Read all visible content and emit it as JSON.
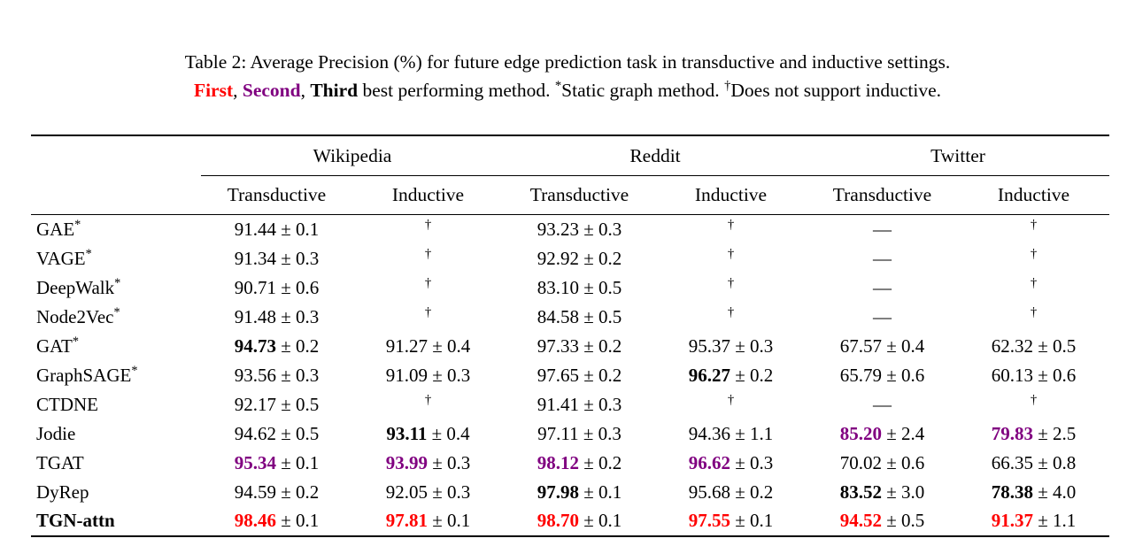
{
  "colors": {
    "first": "#ff0000",
    "second": "#800080",
    "third": "#000000",
    "text": "#000000",
    "background": "#ffffff",
    "rule": "#000000"
  },
  "caption": {
    "line1": "Table 2: Average Precision (%) for future edge prediction task in transductive and inductive settings.",
    "first_label": "First",
    "sep1": ", ",
    "second_label": "Second",
    "sep2": ", ",
    "third_label": "Third",
    "after_third": " best performing method. ",
    "star_sup": "*",
    "star_note": "Static graph method. ",
    "dagger_sup": "†",
    "dagger_note": "Does not support inductive."
  },
  "table": {
    "header": {
      "groups": [
        {
          "label": "Wikipedia"
        },
        {
          "label": "Reddit"
        },
        {
          "label": "Twitter"
        }
      ],
      "subcols": [
        "Transductive",
        "Inductive",
        "Transductive",
        "Inductive",
        "Transductive",
        "Inductive"
      ]
    },
    "rows": [
      {
        "label": {
          "text": "GAE",
          "sup": "*",
          "bold": false
        },
        "cells": [
          {
            "v": "91.44",
            "pm": "± 0.1",
            "rank": "plain"
          },
          {
            "sym": "†"
          },
          {
            "v": "93.23",
            "pm": "± 0.3",
            "rank": "plain"
          },
          {
            "sym": "†"
          },
          {
            "sym": "—"
          },
          {
            "sym": "†"
          }
        ]
      },
      {
        "label": {
          "text": "VAGE",
          "sup": "*",
          "bold": false
        },
        "cells": [
          {
            "v": "91.34",
            "pm": "± 0.3",
            "rank": "plain"
          },
          {
            "sym": "†"
          },
          {
            "v": "92.92",
            "pm": "± 0.2",
            "rank": "plain"
          },
          {
            "sym": "†"
          },
          {
            "sym": "—"
          },
          {
            "sym": "†"
          }
        ]
      },
      {
        "label": {
          "text": "DeepWalk",
          "sup": "*",
          "bold": false
        },
        "cells": [
          {
            "v": "90.71",
            "pm": "± 0.6",
            "rank": "plain"
          },
          {
            "sym": "†"
          },
          {
            "v": "83.10",
            "pm": "± 0.5",
            "rank": "plain"
          },
          {
            "sym": "†"
          },
          {
            "sym": "—"
          },
          {
            "sym": "†"
          }
        ]
      },
      {
        "label": {
          "text": "Node2Vec",
          "sup": "*",
          "bold": false
        },
        "cells": [
          {
            "v": "91.48",
            "pm": "± 0.3",
            "rank": "plain"
          },
          {
            "sym": "†"
          },
          {
            "v": "84.58",
            "pm": "± 0.5",
            "rank": "plain"
          },
          {
            "sym": "†"
          },
          {
            "sym": "—"
          },
          {
            "sym": "†"
          }
        ]
      },
      {
        "label": {
          "text": "GAT",
          "sup": "*",
          "bold": false
        },
        "cells": [
          {
            "v": "94.73",
            "pm": "± 0.2",
            "rank": "third"
          },
          {
            "v": "91.27",
            "pm": "± 0.4",
            "rank": "plain"
          },
          {
            "v": "97.33",
            "pm": "± 0.2",
            "rank": "plain"
          },
          {
            "v": "95.37",
            "pm": "± 0.3",
            "rank": "plain"
          },
          {
            "v": "67.57",
            "pm": "± 0.4",
            "rank": "plain"
          },
          {
            "v": "62.32",
            "pm": "± 0.5",
            "rank": "plain"
          }
        ]
      },
      {
        "label": {
          "text": "GraphSAGE",
          "sup": "*",
          "bold": false
        },
        "cells": [
          {
            "v": "93.56",
            "pm": "± 0.3",
            "rank": "plain"
          },
          {
            "v": "91.09",
            "pm": "± 0.3",
            "rank": "plain"
          },
          {
            "v": "97.65",
            "pm": "± 0.2",
            "rank": "plain"
          },
          {
            "v": "96.27",
            "pm": "± 0.2",
            "rank": "third"
          },
          {
            "v": "65.79",
            "pm": "± 0.6",
            "rank": "plain"
          },
          {
            "v": "60.13",
            "pm": "± 0.6",
            "rank": "plain"
          }
        ]
      },
      {
        "label": {
          "text": "CTDNE",
          "sup": "",
          "bold": false
        },
        "cells": [
          {
            "v": "92.17",
            "pm": "± 0.5",
            "rank": "plain"
          },
          {
            "sym": "†"
          },
          {
            "v": "91.41",
            "pm": "± 0.3",
            "rank": "plain"
          },
          {
            "sym": "†"
          },
          {
            "sym": "—"
          },
          {
            "sym": "†"
          }
        ]
      },
      {
        "label": {
          "text": "Jodie",
          "sup": "",
          "bold": false
        },
        "cells": [
          {
            "v": "94.62",
            "pm": "± 0.5",
            "rank": "plain"
          },
          {
            "v": "93.11",
            "pm": "± 0.4",
            "rank": "third"
          },
          {
            "v": "97.11",
            "pm": "± 0.3",
            "rank": "plain"
          },
          {
            "v": "94.36",
            "pm": "± 1.1",
            "rank": "plain"
          },
          {
            "v": "85.20",
            "pm": "± 2.4",
            "rank": "second"
          },
          {
            "v": "79.83",
            "pm": "± 2.5",
            "rank": "second"
          }
        ]
      },
      {
        "label": {
          "text": "TGAT",
          "sup": "",
          "bold": false
        },
        "cells": [
          {
            "v": "95.34",
            "pm": "± 0.1",
            "rank": "second"
          },
          {
            "v": "93.99",
            "pm": "± 0.3",
            "rank": "second"
          },
          {
            "v": "98.12",
            "pm": "± 0.2",
            "rank": "second"
          },
          {
            "v": "96.62",
            "pm": "± 0.3",
            "rank": "second"
          },
          {
            "v": "70.02",
            "pm": "± 0.6",
            "rank": "plain"
          },
          {
            "v": "66.35",
            "pm": "± 0.8",
            "rank": "plain"
          }
        ]
      },
      {
        "label": {
          "text": "DyRep",
          "sup": "",
          "bold": false
        },
        "cells": [
          {
            "v": "94.59",
            "pm": "± 0.2",
            "rank": "plain"
          },
          {
            "v": "92.05",
            "pm": "± 0.3",
            "rank": "plain"
          },
          {
            "v": "97.98",
            "pm": "± 0.1",
            "rank": "third"
          },
          {
            "v": "95.68",
            "pm": "± 0.2",
            "rank": "plain"
          },
          {
            "v": "83.52",
            "pm": "± 3.0",
            "rank": "third"
          },
          {
            "v": "78.38",
            "pm": "± 4.0",
            "rank": "third"
          }
        ]
      },
      {
        "label": {
          "text": "TGN-attn",
          "sup": "",
          "bold": true
        },
        "cells": [
          {
            "v": "98.46",
            "pm": "± 0.1",
            "rank": "first"
          },
          {
            "v": "97.81",
            "pm": "± 0.1",
            "rank": "first"
          },
          {
            "v": "98.70",
            "pm": "± 0.1",
            "rank": "first"
          },
          {
            "v": "97.55",
            "pm": "± 0.1",
            "rank": "first"
          },
          {
            "v": "94.52",
            "pm": "± 0.5",
            "rank": "first"
          },
          {
            "v": "91.37",
            "pm": "± 1.1",
            "rank": "first"
          }
        ]
      }
    ]
  }
}
